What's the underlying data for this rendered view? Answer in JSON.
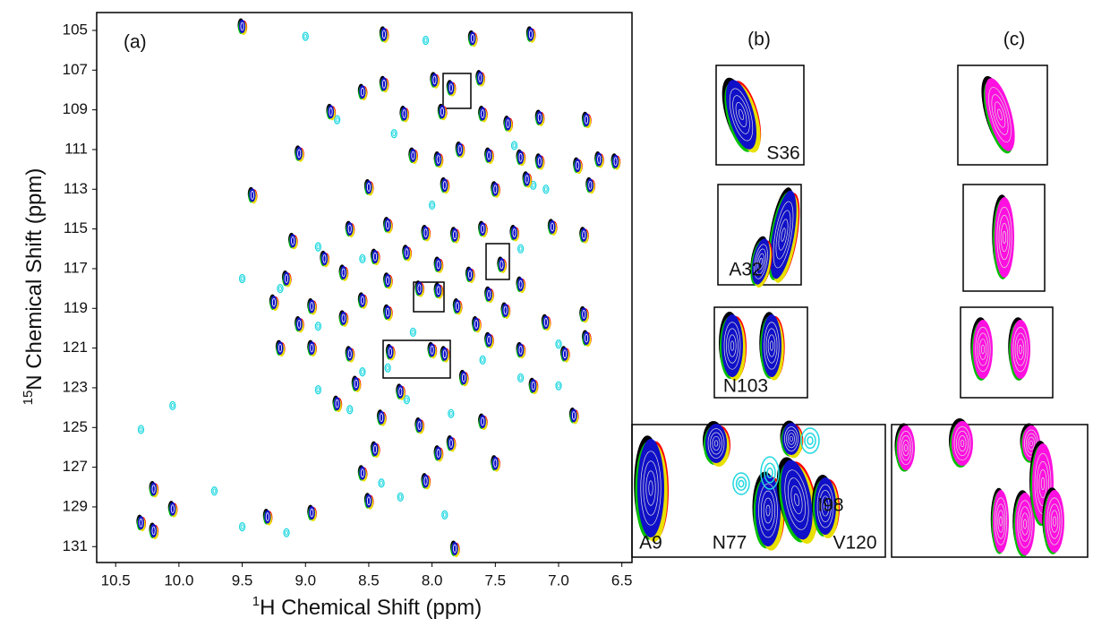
{
  "chart_data": {
    "type": "scatter",
    "panel_labels": [
      "(a)",
      "(b)",
      "(c)"
    ],
    "x_label": {
      "sup": "1",
      "text": "H Chemical Shift (ppm)"
    },
    "y_label": {
      "sup": "15",
      "text": "N Chemical Shift (ppm)"
    },
    "xlim": [
      10.65,
      6.42
    ],
    "ylim": [
      131.8,
      104.1
    ],
    "xticks": [
      10.5,
      {
        "value": 10,
        "label": "10.0"
      },
      9.5,
      {
        "value": 9,
        "label": "9.0"
      },
      8.5,
      {
        "value": 8,
        "label": "8.0"
      },
      7.5,
      {
        "value": 7,
        "label": "7.0"
      },
      6.5
    ],
    "yticks": [
      105,
      107,
      109,
      111,
      113,
      115,
      117,
      119,
      121,
      123,
      125,
      127,
      129,
      131
    ],
    "grid": false,
    "colors": {
      "overlay": [
        "#000000",
        "#00c000",
        "#ff0000",
        "#e8e000",
        "#1010c8"
      ],
      "minor": "#20d8e0",
      "inset_c": "#ff10e0"
    },
    "peaks": {
      "x": [
        9.5,
        8.38,
        7.68,
        7.22,
        7.85,
        8.38,
        7.98,
        8.55,
        7.62,
        8.8,
        8.22,
        7.92,
        7.6,
        7.4,
        7.15,
        6.78,
        9.05,
        8.15,
        7.95,
        7.78,
        7.55,
        7.3,
        7.15,
        6.85,
        6.68,
        6.55,
        9.42,
        8.5,
        7.9,
        7.5,
        7.25,
        6.75,
        8.65,
        8.35,
        8.05,
        7.82,
        7.6,
        7.35,
        7.05,
        6.8,
        9.1,
        8.85,
        8.45,
        8.2,
        7.95,
        7.45,
        7.7,
        9.15,
        8.7,
        8.35,
        8.1,
        7.95,
        7.55,
        7.3,
        9.25,
        8.95,
        8.55,
        7.8,
        7.42,
        6.8,
        9.05,
        8.7,
        8.35,
        7.65,
        7.1,
        9.2,
        8.95,
        8.65,
        8.33,
        8.0,
        7.9,
        7.55,
        7.3,
        6.95,
        6.78,
        8.6,
        8.25,
        7.75,
        7.2,
        8.75,
        8.4,
        8.1,
        7.6,
        6.88,
        8.45,
        7.95,
        7.5,
        8.55,
        8.05,
        7.85,
        8.5,
        10.2,
        10.05,
        10.3,
        10.2,
        9.3,
        8.95,
        7.82
      ],
      "y": [
        104.8,
        105.2,
        105.4,
        105.2,
        107.9,
        107.7,
        107.5,
        108.1,
        107.4,
        109.1,
        109.2,
        109.1,
        109.2,
        109.7,
        109.4,
        109.5,
        111.2,
        111.3,
        111.5,
        111.0,
        111.3,
        111.4,
        111.6,
        111.8,
        111.5,
        111.6,
        113.3,
        112.9,
        112.8,
        113.0,
        112.5,
        112.8,
        115.0,
        114.8,
        115.2,
        115.3,
        115.0,
        115.2,
        114.9,
        115.3,
        115.6,
        116.5,
        116.4,
        116.2,
        116.8,
        116.8,
        117.3,
        117.5,
        117.2,
        117.6,
        118.0,
        118.1,
        118.3,
        117.8,
        118.7,
        118.9,
        118.6,
        118.9,
        119.1,
        119.3,
        119.8,
        119.5,
        119.2,
        119.8,
        119.7,
        121.0,
        121.0,
        121.3,
        121.2,
        121.1,
        121.3,
        120.6,
        121.1,
        121.3,
        120.5,
        122.8,
        123.2,
        122.5,
        122.9,
        123.8,
        124.5,
        124.9,
        124.7,
        124.4,
        126.1,
        126.3,
        126.8,
        127.3,
        127.7,
        125.8,
        128.7,
        128.1,
        129.1,
        129.8,
        130.2,
        129.5,
        129.3,
        131.1
      ]
    },
    "minor_peaks": {
      "x": [
        9.0,
        8.05,
        8.75,
        8.3,
        7.35,
        7.1,
        7.2,
        8.0,
        7.3,
        8.9,
        9.5,
        8.55,
        9.2,
        8.9,
        8.15,
        7.0,
        7.6,
        8.55,
        8.35,
        7.3,
        8.9,
        8.2,
        8.65,
        7.85,
        7.0,
        10.3,
        10.05,
        9.72,
        9.5,
        9.15,
        8.4,
        8.25,
        7.9
      ],
      "y": [
        105.3,
        105.5,
        109.5,
        110.2,
        110.8,
        113.0,
        112.8,
        113.8,
        116.0,
        115.9,
        117.5,
        116.5,
        118.0,
        119.9,
        120.2,
        120.8,
        121.6,
        122.2,
        122.0,
        122.5,
        123.1,
        123.6,
        124.1,
        124.3,
        122.9,
        125.1,
        123.9,
        128.2,
        130.0,
        130.3,
        127.8,
        128.5,
        129.4
      ]
    },
    "inset_labels": [
      "S36",
      "A32",
      "N103",
      "A9",
      "N77",
      "I98",
      "V120"
    ]
  }
}
